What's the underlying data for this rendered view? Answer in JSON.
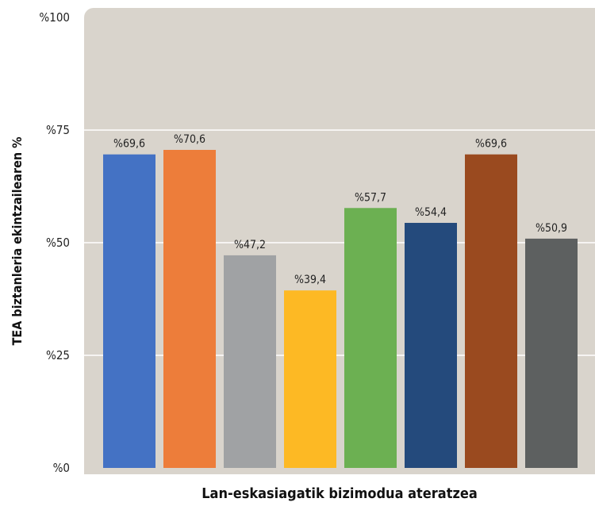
{
  "chart_data": {
    "type": "bar",
    "title": "",
    "xlabel": "Lan-eskasiagatik bizimodua ateratzea",
    "ylabel": "TEA biztanleria ekintzailearen %",
    "ylim": [
      0,
      100
    ],
    "yticks": [
      {
        "value": 0,
        "label": "%0"
      },
      {
        "value": 25,
        "label": "%25"
      },
      {
        "value": 50,
        "label": "%50"
      },
      {
        "value": 75,
        "label": "%75"
      },
      {
        "value": 100,
        "label": "%100"
      }
    ],
    "grid": true,
    "plot_background": "#d9d4cc",
    "bars": [
      {
        "value": 69.6,
        "label": "%69,6",
        "color": "#4472c4"
      },
      {
        "value": 70.6,
        "label": "%70,6",
        "color": "#ed7d3a"
      },
      {
        "value": 47.2,
        "label": "%47,2",
        "color": "#a0a2a4"
      },
      {
        "value": 39.4,
        "label": "%39,4",
        "color": "#fdb924"
      },
      {
        "value": 57.7,
        "label": "%57,7",
        "color": "#6cb052"
      },
      {
        "value": 54.4,
        "label": "%54,4",
        "color": "#244a7c"
      },
      {
        "value": 69.6,
        "label": "%69,6",
        "color": "#9a4a1f"
      },
      {
        "value": 50.9,
        "label": "%50,9",
        "color": "#5d6060"
      }
    ]
  }
}
